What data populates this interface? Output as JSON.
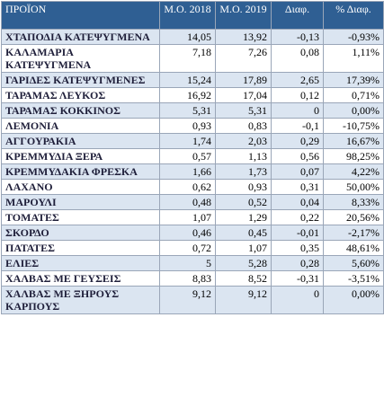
{
  "table": {
    "header": [
      "ΠΡΟΪΟΝ",
      "Μ.Ο. 2018",
      "Μ.Ο. 2019",
      "Διαφ.",
      "% Διαφ."
    ],
    "rows": [
      [
        "ΧΤΑΠΟΔΙΑ ΚΑΤΕΨΥΓΜΕΝΑ",
        "14,05",
        "13,92",
        "-0,13",
        "-0,93%"
      ],
      [
        "ΚΑΛΑΜΑΡΙΑ ΚΑΤΕΨΥΓΜΕΝΑ",
        "7,18",
        "7,26",
        "0,08",
        "1,11%"
      ],
      [
        "ΓΑΡΙΔΕΣ ΚΑΤΕΨΥΓΜΕΝΕΣ",
        "15,24",
        "17,89",
        "2,65",
        "17,39%"
      ],
      [
        "ΤΑΡΑΜΑΣ ΛΕΥΚΟΣ",
        "16,92",
        "17,04",
        "0,12",
        "0,71%"
      ],
      [
        "ΤΑΡΑΜΑΣ ΚΟΚΚΙΝΟΣ",
        "5,31",
        "5,31",
        "0",
        "0,00%"
      ],
      [
        "ΛΕΜΟΝΙΑ",
        "0,93",
        "0,83",
        "-0,1",
        "-10,75%"
      ],
      [
        "ΑΓΓΟΥΡΑΚΙΑ",
        "1,74",
        "2,03",
        "0,29",
        "16,67%"
      ],
      [
        "ΚΡΕΜΜΥΔΙΑ ΞΕΡΑ",
        "0,57",
        "1,13",
        "0,56",
        "98,25%"
      ],
      [
        "ΚΡΕΜΜΥΔΑΚΙΑ ΦΡΕΣΚΑ",
        "1,66",
        "1,73",
        "0,07",
        "4,22%"
      ],
      [
        "ΛΑΧΑΝΟ",
        "0,62",
        "0,93",
        "0,31",
        "50,00%"
      ],
      [
        "ΜΑΡΟΥΛΙ",
        "0,48",
        "0,52",
        "0,04",
        "8,33%"
      ],
      [
        "ΤΟΜΑΤΕΣ",
        "1,07",
        "1,29",
        "0,22",
        "20,56%"
      ],
      [
        "ΣΚΟΡΔΟ",
        "0,46",
        "0,45",
        "-0,01",
        "-2,17%"
      ],
      [
        "ΠΑΤΑΤΕΣ",
        "0,72",
        "1,07",
        "0,35",
        "48,61%"
      ],
      [
        "ΕΛΙΕΣ",
        "5",
        "5,28",
        "0,28",
        "5,60%"
      ],
      [
        "ΧΑΛΒΑΣ ΜΕ ΓΕΥΣΕΙΣ",
        "8,83",
        "8,52",
        "-0,31",
        "-3,51%"
      ],
      [
        "ΧΑΛΒΑΣ ΜΕ ΞΗΡΟΥΣ ΚΑΡΠΟΥΣ",
        "9,12",
        "9,12",
        "0",
        "0,00%"
      ]
    ]
  }
}
